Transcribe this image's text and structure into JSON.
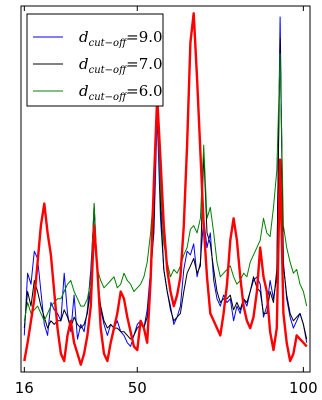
{
  "chart_data": {
    "type": "line",
    "title": "",
    "xlabel": "",
    "ylabel": "",
    "xlim": [
      15,
      102
    ],
    "ylim": [
      0,
      100
    ],
    "xticks": [
      16,
      50,
      100
    ],
    "grid": false,
    "legend_position": "top-left",
    "x": [
      16,
      17,
      18,
      19,
      20,
      21,
      22,
      23,
      24,
      25,
      26,
      27,
      28,
      29,
      30,
      31,
      32,
      33,
      34,
      35,
      36,
      37,
      38,
      39,
      40,
      41,
      42,
      43,
      44,
      45,
      46,
      47,
      48,
      49,
      50,
      51,
      52,
      53,
      54,
      55,
      56,
      57,
      58,
      59,
      60,
      61,
      62,
      63,
      64,
      65,
      66,
      67,
      68,
      69,
      70,
      71,
      72,
      73,
      74,
      75,
      76,
      77,
      78,
      79,
      80,
      81,
      82,
      83,
      84,
      85,
      86,
      87,
      88,
      89,
      90,
      91,
      92,
      93,
      94,
      95,
      96,
      97,
      98,
      99,
      100,
      101
    ],
    "series": [
      {
        "name": "$d_{cut-off}$=9.0",
        "label_symbol": "d",
        "label_subscript": "cut−off",
        "label_value": "=9.0",
        "color": "#0000ff",
        "linewidth": 1,
        "values": [
          10,
          27,
          24,
          33,
          31,
          22,
          13,
          10,
          19,
          17,
          16,
          14,
          27,
          16,
          11,
          21,
          9,
          13,
          11,
          17,
          28,
          44,
          27,
          17,
          13,
          10,
          13,
          12,
          14,
          11,
          10,
          8,
          7,
          10,
          13,
          14,
          12,
          17,
          28,
          38,
          70,
          42,
          28,
          22,
          18,
          13,
          15,
          18,
          28,
          33,
          32,
          35,
          26,
          30,
          42,
          34,
          38,
          25,
          20,
          18,
          21,
          19,
          20,
          14,
          18,
          16,
          20,
          18,
          22,
          25,
          26,
          24,
          15,
          18,
          25,
          20,
          26,
          97,
          30,
          20,
          15,
          12,
          14,
          16,
          13,
          8
        ]
      },
      {
        "name": "$d_{cut-off}$=7.0",
        "label_symbol": "d",
        "label_subscript": "cut−off",
        "label_value": "=7.0",
        "color": "#000000",
        "linewidth": 1,
        "values": [
          12,
          22,
          18,
          25,
          22,
          18,
          15,
          12,
          14,
          13,
          14,
          14,
          17,
          15,
          12,
          15,
          13,
          12,
          13,
          16,
          23,
          46,
          26,
          18,
          14,
          12,
          13,
          12,
          12,
          11,
          11,
          10,
          9,
          10,
          12,
          13,
          12,
          15,
          24,
          40,
          80,
          46,
          28,
          22,
          17,
          14,
          15,
          16,
          22,
          27,
          29,
          31,
          27,
          29,
          60,
          38,
          35,
          28,
          22,
          19,
          20,
          20,
          21,
          17,
          19,
          17,
          20,
          19,
          22,
          26,
          23,
          22,
          16,
          16,
          22,
          19,
          28,
          91,
          29,
          21,
          16,
          14,
          15,
          16,
          13,
          9
        ]
      },
      {
        "name": "$d_{cut-off}$=6.0",
        "label_symbol": "d",
        "label_subscript": "cut−off",
        "label_value": "=6.0",
        "color": "#008000",
        "linewidth": 1,
        "values": [
          14,
          19,
          16,
          17,
          18,
          16,
          14,
          16,
          18,
          19,
          20,
          20,
          22,
          24,
          25,
          22,
          20,
          18,
          18,
          20,
          25,
          46,
          28,
          25,
          23,
          24,
          25,
          26,
          23,
          24,
          27,
          25,
          24,
          22,
          23,
          24,
          26,
          30,
          38,
          50,
          72,
          50,
          35,
          30,
          26,
          28,
          27,
          29,
          32,
          34,
          39,
          40,
          38,
          42,
          62,
          42,
          45,
          38,
          30,
          26,
          27,
          28,
          29,
          26,
          24,
          25,
          27,
          26,
          30,
          32,
          34,
          36,
          42,
          38,
          37,
          45,
          55,
          87,
          40,
          34,
          30,
          27,
          28,
          24,
          22,
          18
        ]
      },
      {
        "name": "",
        "color": "#ff0000",
        "linewidth": 2.4,
        "values": [
          3,
          8,
          14,
          20,
          30,
          40,
          46,
          38,
          32,
          22,
          12,
          5,
          3,
          10,
          14,
          8,
          5,
          2,
          5,
          10,
          18,
          40,
          28,
          12,
          5,
          3,
          8,
          12,
          16,
          22,
          20,
          15,
          11,
          7,
          6,
          14,
          12,
          8,
          25,
          52,
          75,
          58,
          40,
          28,
          22,
          18,
          21,
          26,
          40,
          62,
          90,
          98,
          80,
          60,
          40,
          26,
          16,
          14,
          12,
          10,
          16,
          24,
          36,
          42,
          36,
          26,
          18,
          14,
          12,
          15,
          22,
          34,
          26,
          22,
          11,
          6,
          12,
          58,
          16,
          8,
          3,
          5,
          10,
          9,
          8,
          7
        ]
      }
    ]
  }
}
